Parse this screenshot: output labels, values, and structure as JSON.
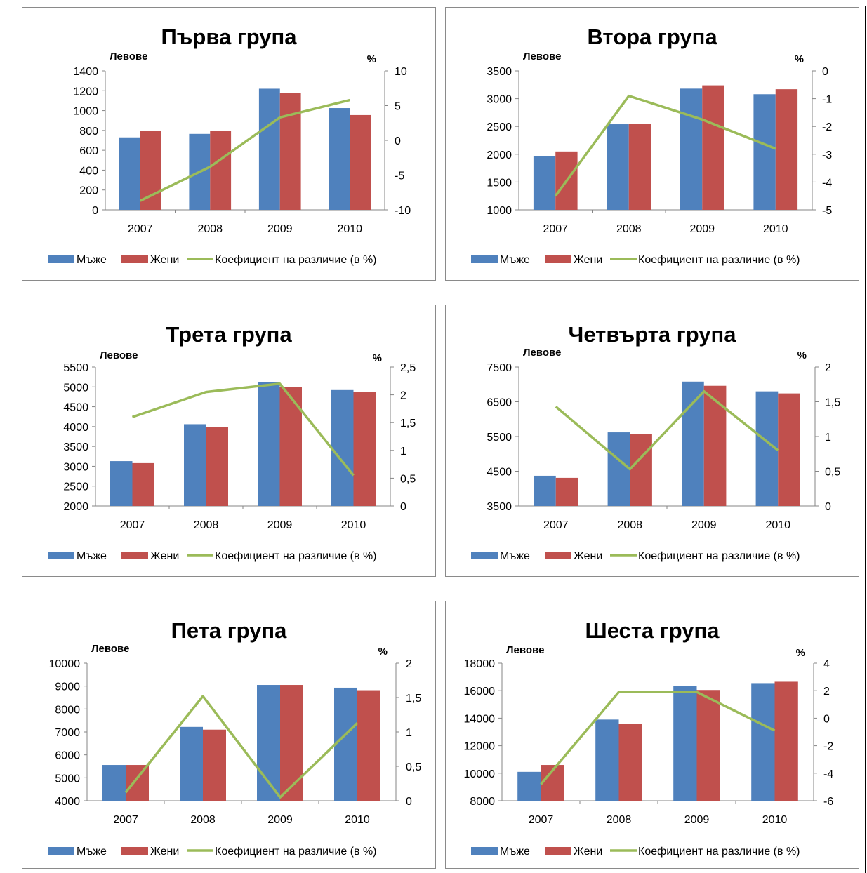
{
  "chart_data": [
    {
      "type": "bar",
      "title": "Първа група",
      "ylabel": "Левове",
      "y2label": "%",
      "categories": [
        "2007",
        "2008",
        "2009",
        "2010"
      ],
      "ylim": [
        0,
        1400
      ],
      "yticks": [
        0,
        200,
        400,
        600,
        800,
        1000,
        1200,
        1400
      ],
      "y2lim": [
        -10,
        10
      ],
      "y2ticks": [
        "-10",
        "-5",
        "0",
        "5",
        "10"
      ],
      "series": [
        {
          "name": "Мъже",
          "type": "bar",
          "axis": "left",
          "color": "#4F81BD",
          "values": [
            730,
            765,
            1220,
            1025
          ]
        },
        {
          "name": "Жени",
          "type": "bar",
          "axis": "left",
          "color": "#C0504D",
          "values": [
            795,
            795,
            1180,
            955
          ]
        },
        {
          "name": "Коефициент на различие (в %)",
          "type": "line",
          "axis": "right",
          "color": "#9BBB59",
          "values": [
            -8.7,
            -3.8,
            3.3,
            5.8
          ]
        }
      ],
      "legend": "bottom"
    },
    {
      "type": "bar",
      "title": "Втора група",
      "ylabel": "Левове",
      "y2label": "%",
      "categories": [
        "2007",
        "2008",
        "2009",
        "2010"
      ],
      "ylim": [
        1000,
        3500
      ],
      "yticks": [
        1000,
        1500,
        2000,
        2500,
        3000,
        3500
      ],
      "y2lim": [
        -5,
        0
      ],
      "y2ticks": [
        "-5",
        "-4",
        "-3",
        "-2",
        "-1",
        "0"
      ],
      "series": [
        {
          "name": "Мъже",
          "type": "bar",
          "axis": "left",
          "color": "#4F81BD",
          "values": [
            1960,
            2540,
            3180,
            3080
          ]
        },
        {
          "name": "Жени",
          "type": "bar",
          "axis": "left",
          "color": "#C0504D",
          "values": [
            2050,
            2550,
            3240,
            3170
          ]
        },
        {
          "name": "Коефициент на различие (в %)",
          "type": "line",
          "axis": "right",
          "color": "#9BBB59",
          "values": [
            -4.5,
            -0.9,
            -1.75,
            -2.8
          ]
        }
      ],
      "legend": "bottom"
    },
    {
      "type": "bar",
      "title": "Трета група",
      "ylabel": "Левове",
      "y2label": "%",
      "categories": [
        "2007",
        "2008",
        "2009",
        "2010"
      ],
      "ylim": [
        2000,
        5500
      ],
      "yticks": [
        2000,
        2500,
        3000,
        3500,
        4000,
        4500,
        5000,
        5500
      ],
      "y2lim": [
        0,
        2.5
      ],
      "y2ticks": [
        "0",
        "0,5",
        "1",
        "1,5",
        "2",
        "2,5"
      ],
      "series": [
        {
          "name": "Мъже",
          "type": "bar",
          "axis": "left",
          "color": "#4F81BD",
          "values": [
            3130,
            4060,
            5120,
            4920
          ]
        },
        {
          "name": "Жени",
          "type": "bar",
          "axis": "left",
          "color": "#C0504D",
          "values": [
            3080,
            3980,
            5000,
            4880
          ]
        },
        {
          "name": "Коефициент на различие (в %)",
          "type": "line",
          "axis": "right",
          "color": "#9BBB59",
          "values": [
            1.6,
            2.05,
            2.2,
            0.55
          ]
        }
      ],
      "legend": "bottom"
    },
    {
      "type": "bar",
      "title": "Четвърта група",
      "ylabel": "Левове",
      "y2label": "%",
      "categories": [
        "2007",
        "2008",
        "2009",
        "2010"
      ],
      "ylim": [
        3500,
        7500
      ],
      "yticks": [
        3500,
        4500,
        5500,
        6500,
        7500
      ],
      "y2lim": [
        0,
        2
      ],
      "y2ticks": [
        "0",
        "0,5",
        "1",
        "1,5",
        "2"
      ],
      "series": [
        {
          "name": "Мъже",
          "type": "bar",
          "axis": "left",
          "color": "#4F81BD",
          "values": [
            4370,
            5620,
            7080,
            6800
          ]
        },
        {
          "name": "Жени",
          "type": "bar",
          "axis": "left",
          "color": "#C0504D",
          "values": [
            4310,
            5580,
            6960,
            6740
          ]
        },
        {
          "name": "Коефициент на различие (в %)",
          "type": "line",
          "axis": "right",
          "color": "#9BBB59",
          "values": [
            1.43,
            0.53,
            1.65,
            0.8
          ]
        }
      ],
      "legend": "bottom"
    },
    {
      "type": "bar",
      "title": "Пета група",
      "ylabel": "Левове",
      "y2label": "%",
      "categories": [
        "2007",
        "2008",
        "2009",
        "2010"
      ],
      "ylim": [
        4000,
        10000
      ],
      "yticks": [
        4000,
        5000,
        6000,
        7000,
        8000,
        9000,
        10000
      ],
      "y2lim": [
        0,
        2
      ],
      "y2ticks": [
        "0",
        "0,5",
        "1",
        "1,5",
        "2"
      ],
      "series": [
        {
          "name": "Мъже",
          "type": "bar",
          "axis": "left",
          "color": "#4F81BD",
          "values": [
            5560,
            7220,
            9050,
            8930
          ]
        },
        {
          "name": "Жени",
          "type": "bar",
          "axis": "left",
          "color": "#C0504D",
          "values": [
            5560,
            7100,
            9050,
            8820
          ]
        },
        {
          "name": "Коефициент на различие (в %)",
          "type": "line",
          "axis": "right",
          "color": "#9BBB59",
          "values": [
            0.12,
            1.52,
            0.05,
            1.13
          ]
        }
      ],
      "legend": "bottom"
    },
    {
      "type": "bar",
      "title": "Шеста група",
      "ylabel": "Левове",
      "y2label": "%",
      "categories": [
        "2007",
        "2008",
        "2009",
        "2010"
      ],
      "ylim": [
        8000,
        18000
      ],
      "yticks": [
        8000,
        10000,
        12000,
        14000,
        16000,
        18000
      ],
      "y2lim": [
        -6,
        4
      ],
      "y2ticks": [
        "-6",
        "-4",
        "-2",
        "0",
        "2",
        "4"
      ],
      "series": [
        {
          "name": "Мъже",
          "type": "bar",
          "axis": "left",
          "color": "#4F81BD",
          "values": [
            10100,
            13900,
            16350,
            16550
          ]
        },
        {
          "name": "Жени",
          "type": "bar",
          "axis": "left",
          "color": "#C0504D",
          "values": [
            10600,
            13600,
            16050,
            16650
          ]
        },
        {
          "name": "Коефициент на различие (в %)",
          "type": "line",
          "axis": "right",
          "color": "#9BBB59",
          "values": [
            -4.8,
            1.9,
            1.9,
            -0.9
          ]
        }
      ],
      "legend": "bottom"
    }
  ]
}
